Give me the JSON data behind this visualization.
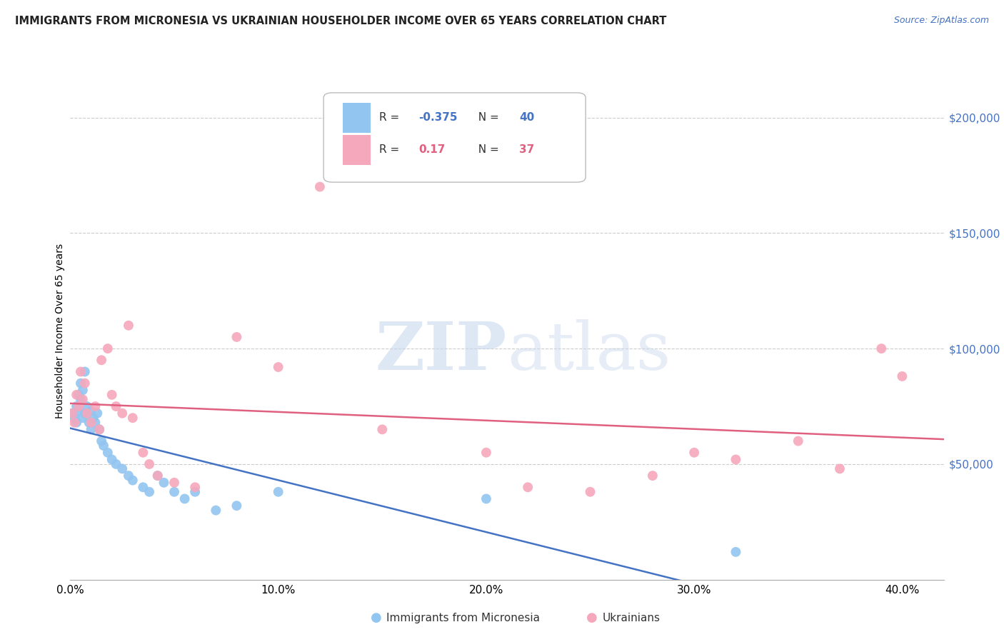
{
  "title": "IMMIGRANTS FROM MICRONESIA VS UKRAINIAN HOUSEHOLDER INCOME OVER 65 YEARS CORRELATION CHART",
  "source": "Source: ZipAtlas.com",
  "ylabel": "Householder Income Over 65 years",
  "xlabel_ticks": [
    "0.0%",
    "10.0%",
    "20.0%",
    "30.0%",
    "40.0%"
  ],
  "xlabel_vals": [
    0.0,
    0.1,
    0.2,
    0.3,
    0.4
  ],
  "ylabel_ticks": [
    0,
    50000,
    100000,
    150000,
    200000
  ],
  "ylabel_labels": [
    "",
    "$50,000",
    "$100,000",
    "$150,000",
    "$200,000"
  ],
  "xlim": [
    0.0,
    0.42
  ],
  "ylim": [
    0,
    215000
  ],
  "blue_R": -0.375,
  "blue_N": 40,
  "pink_R": 0.17,
  "pink_N": 37,
  "blue_label": "Immigrants from Micronesia",
  "pink_label": "Ukrainians",
  "blue_color": "#92C5F0",
  "pink_color": "#F5A8BC",
  "blue_line_color": "#4472C4",
  "pink_line_color": "#E06080",
  "watermark_zip": "ZIP",
  "watermark_atlas": "atlas",
  "blue_x": [
    0.001,
    0.002,
    0.003,
    0.003,
    0.004,
    0.004,
    0.005,
    0.005,
    0.006,
    0.006,
    0.007,
    0.007,
    0.008,
    0.009,
    0.01,
    0.01,
    0.011,
    0.012,
    0.013,
    0.014,
    0.015,
    0.016,
    0.018,
    0.02,
    0.022,
    0.025,
    0.028,
    0.03,
    0.035,
    0.038,
    0.042,
    0.045,
    0.05,
    0.055,
    0.06,
    0.07,
    0.08,
    0.1,
    0.2,
    0.32
  ],
  "blue_y": [
    72000,
    70000,
    75000,
    68000,
    80000,
    73000,
    85000,
    78000,
    82000,
    70000,
    90000,
    72000,
    75000,
    68000,
    73000,
    65000,
    70000,
    68000,
    72000,
    65000,
    60000,
    58000,
    55000,
    52000,
    50000,
    48000,
    45000,
    43000,
    40000,
    38000,
    45000,
    42000,
    38000,
    35000,
    38000,
    30000,
    32000,
    38000,
    35000,
    12000
  ],
  "pink_x": [
    0.001,
    0.002,
    0.003,
    0.004,
    0.005,
    0.006,
    0.007,
    0.008,
    0.01,
    0.012,
    0.014,
    0.015,
    0.018,
    0.02,
    0.022,
    0.025,
    0.028,
    0.03,
    0.035,
    0.038,
    0.042,
    0.05,
    0.06,
    0.08,
    0.1,
    0.12,
    0.15,
    0.2,
    0.22,
    0.25,
    0.28,
    0.3,
    0.32,
    0.35,
    0.37,
    0.39,
    0.4
  ],
  "pink_y": [
    72000,
    68000,
    80000,
    75000,
    90000,
    78000,
    85000,
    72000,
    68000,
    75000,
    65000,
    95000,
    100000,
    80000,
    75000,
    72000,
    110000,
    70000,
    55000,
    50000,
    45000,
    42000,
    40000,
    105000,
    92000,
    170000,
    65000,
    55000,
    40000,
    38000,
    45000,
    55000,
    52000,
    60000,
    48000,
    100000,
    88000
  ]
}
